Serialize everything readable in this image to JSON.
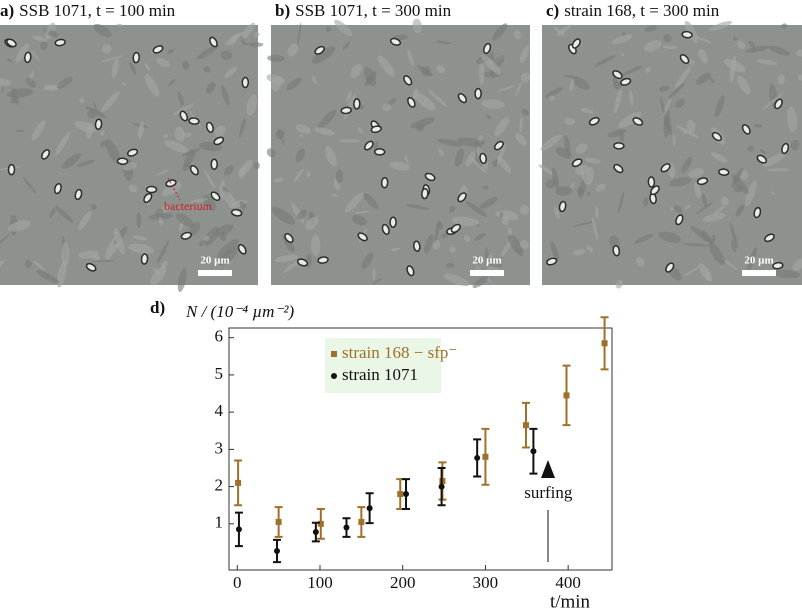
{
  "images": [
    {
      "label": "a)",
      "title": "SSB 1071, t = 100 min",
      "scale_bar": "20 µm",
      "annotation": "bacterium"
    },
    {
      "label": "b)",
      "title": "SSB 1071, t = 300 min",
      "scale_bar": "20 µm"
    },
    {
      "label": "c)",
      "title": "strain 168, t = 300 min",
      "scale_bar": "20 µm"
    }
  ],
  "chart_data": {
    "type": "scatter",
    "label": "d)",
    "y_label": "N / (10⁻⁴ µm⁻²)",
    "x_label": "t/min",
    "xlim": [
      -10,
      453
    ],
    "ylim": [
      -0.24,
      6.26
    ],
    "xticks": [
      0,
      100,
      200,
      300,
      400
    ],
    "yticks": [
      1,
      2,
      3,
      4,
      5,
      6
    ],
    "legend": "upper left",
    "series": [
      {
        "name": "strain 168 − sfp⁻",
        "color": "#a0702a",
        "marker": "square",
        "x": [
          1,
          50,
          101,
          150,
          197,
          248,
          300,
          349,
          398,
          444
        ],
        "values": [
          2.1,
          1.05,
          1.0,
          1.05,
          1.8,
          2.15,
          2.8,
          3.65,
          4.45,
          5.85
        ],
        "errors": [
          0.6,
          0.4,
          0.4,
          0.4,
          0.4,
          0.5,
          0.75,
          0.6,
          0.8,
          0.7
        ]
      },
      {
        "name": "strain 1071",
        "color": "#111111",
        "marker": "circle",
        "x": [
          2,
          48,
          95,
          132,
          160,
          204,
          247,
          290,
          358
        ],
        "values": [
          0.85,
          0.27,
          0.78,
          0.9,
          1.42,
          1.8,
          2.0,
          2.77,
          2.95
        ],
        "errors": [
          0.45,
          0.3,
          0.25,
          0.25,
          0.4,
          0.4,
          0.5,
          0.5,
          0.6
        ]
      }
    ],
    "annotation": {
      "text": "surfing",
      "x": 376
    }
  }
}
